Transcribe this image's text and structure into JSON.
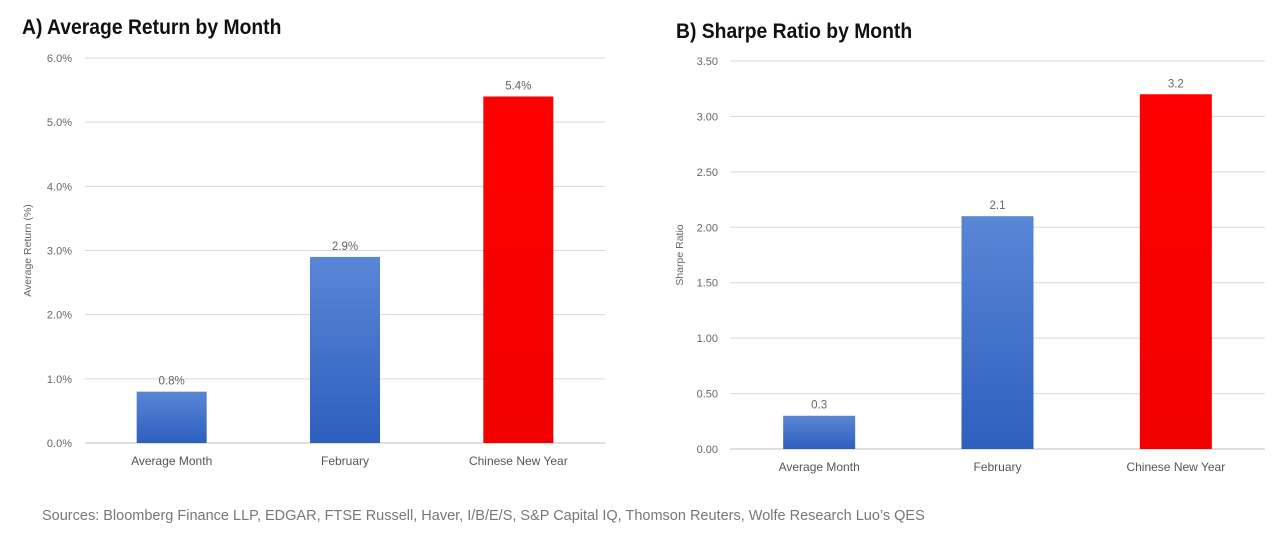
{
  "chart_data": [
    {
      "type": "bar",
      "title": "A) Average Return by Month",
      "xlabel": "",
      "ylabel": "Average Return (%)",
      "categories": [
        "Average Month",
        "February",
        "Chinese New Year"
      ],
      "values": [
        0.8,
        2.9,
        5.4
      ],
      "value_labels": [
        "0.8%",
        "2.9%",
        "5.4%"
      ],
      "bar_colors": [
        "#3a6cc6",
        "#3a6cc6",
        "#ff0000"
      ],
      "ylim": [
        0,
        6
      ],
      "yticks": [
        0,
        1,
        2,
        3,
        4,
        5,
        6
      ],
      "ytick_labels": [
        "0.0%",
        "1.0%",
        "2.0%",
        "3.0%",
        "4.0%",
        "5.0%",
        "6.0%"
      ],
      "grid": true,
      "legend": "none"
    },
    {
      "type": "bar",
      "title": "B) Sharpe Ratio by Month",
      "xlabel": "",
      "ylabel": "Sharpe Ratio",
      "categories": [
        "Average Month",
        "February",
        "Chinese New Year"
      ],
      "values": [
        0.3,
        2.1,
        3.2
      ],
      "value_labels": [
        "0.3",
        "2.1",
        "3.2"
      ],
      "bar_colors": [
        "#3a6cc6",
        "#3a6cc6",
        "#ff0000"
      ],
      "ylim": [
        0,
        3.5
      ],
      "yticks": [
        0,
        0.5,
        1,
        1.5,
        2,
        2.5,
        3,
        3.5
      ],
      "ytick_labels": [
        "0.00",
        "0.50",
        "1.00",
        "1.50",
        "2.00",
        "2.50",
        "3.00",
        "3.50"
      ],
      "grid": true,
      "legend": "none"
    }
  ],
  "footer": {
    "sources": "Sources: Bloomberg Finance LLP, EDGAR, FTSE Russell, Haver, I/B/E/S, S&P Capital IQ, Thomson Reuters, Wolfe Research Luo’s QES"
  }
}
